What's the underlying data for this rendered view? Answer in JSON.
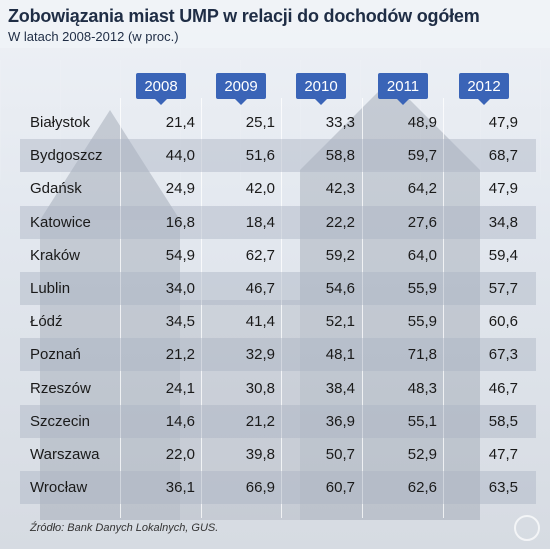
{
  "title": "Zobowiązania miast UMP w relacji do dochodów ogółem",
  "subtitle": "W latach 2008-2012 (w proc.)",
  "source": "Źródło: Bank Danych Lokalnych, GUS.",
  "colors": {
    "accent": "#3a64b7",
    "text": "#1a1a1a",
    "title": "#1f2d45"
  },
  "chart_data": {
    "type": "table",
    "title": "Zobowiązania miast UMP w relacji do dochodów ogółem",
    "subtitle": "W latach 2008-2012 (w proc.)",
    "columns": [
      "2008",
      "2009",
      "2010",
      "2011",
      "2012"
    ],
    "rows": [
      {
        "city": "Białystok",
        "values": [
          "21,4",
          "25,1",
          "33,3",
          "48,9",
          "47,9"
        ]
      },
      {
        "city": "Bydgoszcz",
        "values": [
          "44,0",
          "51,6",
          "58,8",
          "59,7",
          "68,7"
        ]
      },
      {
        "city": "Gdańsk",
        "values": [
          "24,9",
          "42,0",
          "42,3",
          "64,2",
          "47,9"
        ]
      },
      {
        "city": "Katowice",
        "values": [
          "16,8",
          "18,4",
          "22,2",
          "27,6",
          "34,8"
        ]
      },
      {
        "city": "Kraków",
        "values": [
          "54,9",
          "62,7",
          "59,2",
          "64,0",
          "59,4"
        ]
      },
      {
        "city": "Lublin",
        "values": [
          "34,0",
          "46,7",
          "54,6",
          "55,9",
          "57,7"
        ]
      },
      {
        "city": "Łódź",
        "values": [
          "34,5",
          "41,4",
          "52,1",
          "55,9",
          "60,6"
        ]
      },
      {
        "city": "Poznań",
        "values": [
          "21,2",
          "32,9",
          "48,1",
          "71,8",
          "67,3"
        ]
      },
      {
        "city": "Rzeszów",
        "values": [
          "24,1",
          "30,8",
          "38,4",
          "48,3",
          "46,7"
        ]
      },
      {
        "city": "Szczecin",
        "values": [
          "14,6",
          "21,2",
          "36,9",
          "55,1",
          "58,5"
        ]
      },
      {
        "city": "Warszawa",
        "values": [
          "22,0",
          "39,8",
          "50,7",
          "52,9",
          "47,7"
        ]
      },
      {
        "city": "Wrocław",
        "values": [
          "36,1",
          "66,9",
          "60,7",
          "62,6",
          "63,5"
        ]
      }
    ]
  }
}
